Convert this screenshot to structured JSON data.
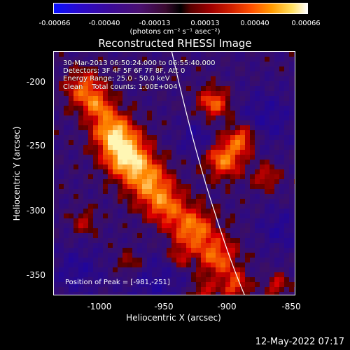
{
  "colorbar": {
    "ticks": [
      "-0.00066",
      "-0.00040",
      "-0.00013",
      "0.00013",
      "0.00040",
      "0.00066"
    ],
    "units": "(photons cm⁻² s⁻¹ asec⁻²)",
    "colors": [
      "#1a1aff",
      "#3b00aa",
      "#5a1a8a",
      "#b01010",
      "#ff6a00",
      "#ffffff"
    ]
  },
  "title": "Reconstructed RHESSI Image",
  "info": {
    "line1": "30-Mar-2013 06:50:24.000 to 06:55:40.000",
    "line2": "Detectors: 3F 4F 5F 6F 7F 8F, Att 0",
    "line3": "Energy Range: 25.0 - 50.0 keV",
    "line4": "Clean    Total counts: 1.00E+004"
  },
  "peak": "Position of Peak = [-981,-251]",
  "axes": {
    "xlabel": "Heliocentric X (arcsec)",
    "ylabel": "Heliocentric Y (arcsec)",
    "xticks": [
      "-1000",
      "-950",
      "-900",
      "-850"
    ],
    "yticks": [
      "-200",
      "-250",
      "-300",
      "-350"
    ]
  },
  "date": "12-May-2022 07:17"
}
